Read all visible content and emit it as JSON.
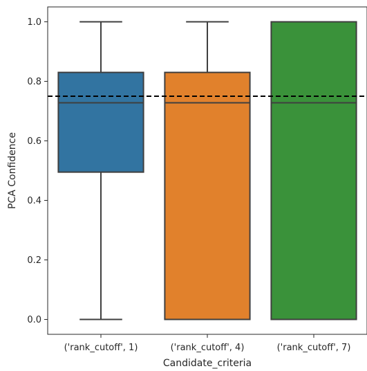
{
  "chart_data": {
    "type": "box",
    "xlabel": "Candidate_criteria",
    "ylabel": "PCA Confidence",
    "ylim": [
      -0.05,
      1.05
    ],
    "yticks": [
      "0.0",
      "0.2",
      "0.4",
      "0.6",
      "0.8",
      "1.0"
    ],
    "grid": false,
    "reference_line": {
      "y": 0.75,
      "style": "dashed",
      "color": "#000000"
    },
    "categories": [
      "('rank_cutoff', 1)",
      "('rank_cutoff', 4)",
      "('rank_cutoff', 7)"
    ],
    "boxes": [
      {
        "q1": 0.495,
        "median": 0.728,
        "q3": 0.83,
        "whisker_low": 0.0,
        "whisker_high": 1.0,
        "color": "#3274a1"
      },
      {
        "q1": 0.0,
        "median": 0.728,
        "q3": 0.83,
        "whisker_low": 0.0,
        "whisker_high": 1.0,
        "color": "#e1812c"
      },
      {
        "q1": 0.0,
        "median": 0.728,
        "q3": 1.0,
        "whisker_low": 0.0,
        "whisker_high": 1.0,
        "color": "#3a923a"
      }
    ],
    "edge_color": "#3f3f3f"
  }
}
